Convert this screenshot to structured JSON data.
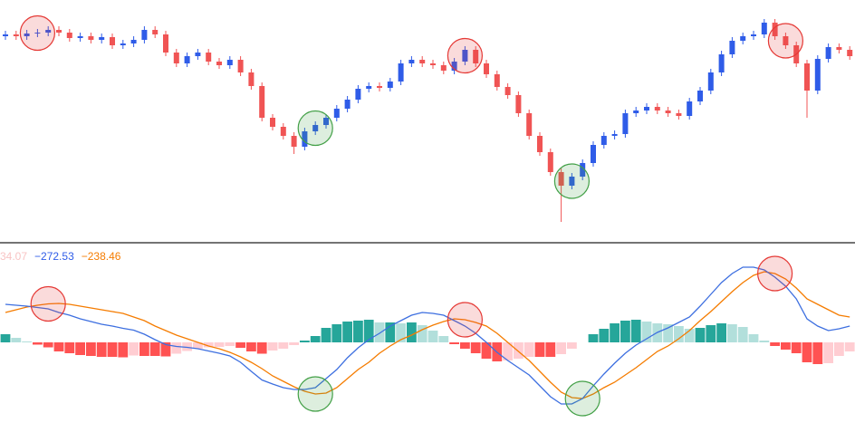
{
  "chart_data": [
    {
      "type": "candlestick",
      "up_color": "#2f5ce8",
      "down_color": "#f05454",
      "ylim": [
        5,
        270
      ],
      "open": [
        230,
        232,
        230,
        233,
        234,
        237,
        234,
        228,
        230,
        226,
        229,
        220,
        222,
        226,
        237,
        232,
        212,
        200,
        208,
        212,
        202,
        198,
        204,
        190,
        175,
        140,
        130,
        120,
        108,
        125,
        132,
        140,
        150,
        160,
        172,
        175,
        173,
        180,
        200,
        204,
        200,
        198,
        192,
        202,
        215,
        200,
        188,
        174,
        165,
        145,
        120,
        102,
        80,
        65,
        75,
        90,
        110,
        120,
        122,
        145,
        148,
        152,
        148,
        145,
        142,
        158,
        170,
        190,
        210,
        225,
        230,
        232,
        245,
        230,
        220,
        200,
        170,
        205,
        218,
        215
      ],
      "high": [
        236,
        236,
        237,
        238,
        241,
        241,
        238,
        234,
        234,
        233,
        233,
        226,
        230,
        241,
        241,
        236,
        216,
        212,
        216,
        216,
        206,
        208,
        208,
        194,
        179,
        144,
        134,
        124,
        129,
        136,
        144,
        154,
        164,
        176,
        179,
        179,
        184,
        204,
        208,
        208,
        204,
        202,
        206,
        219,
        219,
        204,
        192,
        178,
        169,
        149,
        124,
        106,
        84,
        79,
        94,
        114,
        124,
        126,
        149,
        152,
        156,
        156,
        152,
        149,
        162,
        174,
        194,
        214,
        229,
        234,
        236,
        249,
        249,
        234,
        224,
        204,
        209,
        222,
        222,
        219
      ],
      "low": [
        226,
        226,
        226,
        229,
        230,
        230,
        224,
        224,
        222,
        222,
        216,
        216,
        218,
        222,
        228,
        208,
        196,
        196,
        204,
        198,
        194,
        194,
        186,
        171,
        136,
        126,
        116,
        100,
        104,
        121,
        128,
        136,
        146,
        156,
        168,
        169,
        169,
        176,
        196,
        196,
        194,
        188,
        188,
        198,
        196,
        184,
        170,
        161,
        141,
        116,
        98,
        76,
        25,
        61,
        71,
        86,
        106,
        116,
        118,
        141,
        144,
        144,
        141,
        138,
        138,
        154,
        166,
        186,
        206,
        221,
        226,
        228,
        226,
        216,
        196,
        140,
        166,
        201,
        211,
        204
      ],
      "close": [
        232,
        230,
        233,
        234,
        237,
        234,
        228,
        230,
        226,
        229,
        220,
        222,
        226,
        237,
        232,
        212,
        200,
        208,
        212,
        202,
        198,
        204,
        190,
        175,
        140,
        130,
        120,
        108,
        125,
        132,
        140,
        150,
        160,
        172,
        175,
        173,
        180,
        200,
        204,
        200,
        198,
        192,
        202,
        215,
        200,
        188,
        174,
        165,
        145,
        120,
        102,
        80,
        65,
        75,
        90,
        110,
        120,
        122,
        145,
        148,
        152,
        148,
        145,
        142,
        158,
        170,
        190,
        210,
        225,
        230,
        232,
        245,
        230,
        220,
        200,
        170,
        205,
        218,
        215,
        208
      ],
      "markers": [
        {
          "index": 3,
          "color": "#e53935"
        },
        {
          "index": 29,
          "color": "#43a047"
        },
        {
          "index": 43,
          "color": "#e53935"
        },
        {
          "index": 53,
          "color": "#43a047"
        },
        {
          "index": 73,
          "color": "#e53935"
        }
      ]
    },
    {
      "type": "macd",
      "ylim": [
        -1100,
        1080
      ],
      "readout": [
        {
          "text": "34.07",
          "color": "#f8c4c4"
        },
        {
          "text": "−272.53",
          "color": "#2f5ce8"
        },
        {
          "text": "−238.46",
          "color": "#f57c00"
        }
      ],
      "histogram": {
        "colors": [
          "#26a69a",
          "#b2dfdb",
          "#ff5252",
          "#ffcdd2"
        ],
        "values": [
          90,
          50,
          10,
          -25,
          -55,
          -100,
          -120,
          -140,
          -150,
          -160,
          -160,
          -165,
          -145,
          -150,
          -150,
          -155,
          -125,
          -95,
          -70,
          -55,
          -50,
          -40,
          -60,
          -100,
          -125,
          -90,
          -70,
          -30,
          20,
          70,
          160,
          200,
          230,
          240,
          250,
          220,
          220,
          210,
          220,
          190,
          130,
          70,
          -20,
          -70,
          -120,
          -180,
          -210,
          -200,
          -180,
          -160,
          -160,
          -160,
          -130,
          -70,
          0,
          90,
          150,
          210,
          240,
          250,
          230,
          210,
          200,
          180,
          150,
          160,
          190,
          210,
          200,
          170,
          90,
          20,
          -40,
          -80,
          -120,
          -220,
          -240,
          -230,
          -150,
          -100
        ]
      },
      "macd": {
        "color": "#3d6fe0",
        "values": [
          420,
          410,
          400,
          385,
          370,
          330,
          300,
          260,
          230,
          200,
          180,
          155,
          135,
          90,
          30,
          -25,
          -45,
          -55,
          -70,
          -95,
          -120,
          -150,
          -220,
          -320,
          -415,
          -460,
          -500,
          -520,
          -520,
          -500,
          -400,
          -300,
          -170,
          -60,
          30,
          100,
          180,
          240,
          300,
          330,
          320,
          300,
          240,
          180,
          100,
          0,
          -110,
          -200,
          -280,
          -360,
          -480,
          -600,
          -680,
          -680,
          -620,
          -480,
          -350,
          -230,
          -120,
          -30,
          40,
          110,
          160,
          220,
          280,
          400,
          530,
          660,
          760,
          830,
          830,
          800,
          720,
          620,
          480,
          260,
          180,
          130,
          150,
          180
        ]
      },
      "signal": {
        "color": "#f57c00",
        "values": [
          330,
          360,
          390,
          410,
          425,
          430,
          420,
          400,
          380,
          360,
          340,
          320,
          280,
          240,
          180,
          130,
          80,
          40,
          0,
          -40,
          -70,
          -110,
          -160,
          -220,
          -290,
          -370,
          -430,
          -490,
          -540,
          -570,
          -560,
          -500,
          -400,
          -300,
          -220,
          -120,
          -40,
          30,
          80,
          140,
          190,
          230,
          260,
          250,
          220,
          180,
          100,
          0,
          -100,
          -200,
          -320,
          -440,
          -550,
          -610,
          -620,
          -570,
          -500,
          -440,
          -360,
          -280,
          -190,
          -100,
          -40,
          40,
          130,
          240,
          340,
          450,
          560,
          660,
          740,
          780,
          760,
          700,
          600,
          480,
          420,
          360,
          300,
          280
        ]
      },
      "markers": [
        {
          "index": 4,
          "color": "#e53935"
        },
        {
          "index": 29,
          "color": "#43a047"
        },
        {
          "index": 43,
          "color": "#e53935"
        },
        {
          "index": 54,
          "color": "#43a047"
        },
        {
          "index": 72,
          "color": "#e53935"
        }
      ]
    }
  ]
}
